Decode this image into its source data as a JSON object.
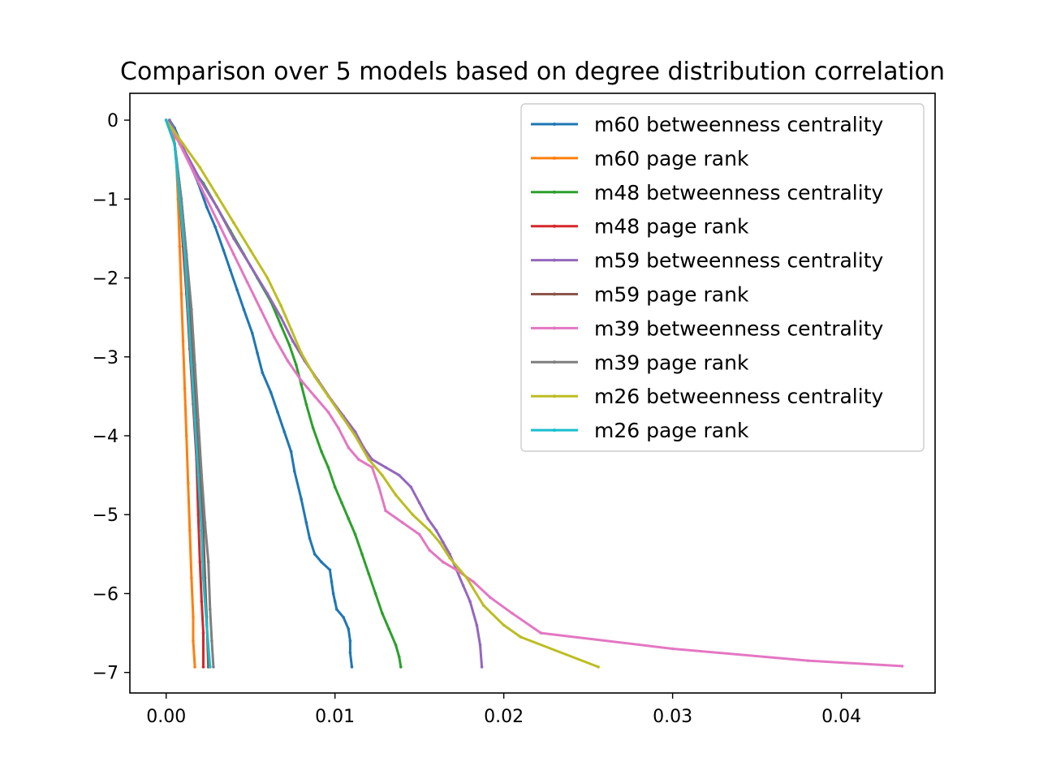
{
  "chart_data": {
    "type": "line",
    "title": "Comparison over 5 models based on degree distribution correlation",
    "xlabel": "",
    "ylabel": "",
    "xlim": [
      -0.00215,
      0.04555
    ],
    "ylim": [
      -7.26,
      0.34
    ],
    "x_ticks": [
      "0.00",
      "0.01",
      "0.02",
      "0.03",
      "0.04"
    ],
    "x_tick_values": [
      0,
      0.01,
      0.02,
      0.03,
      0.04
    ],
    "y_ticks": [
      "0",
      "−1",
      "−2",
      "−3",
      "−4",
      "−5",
      "−6",
      "−7"
    ],
    "y_tick_values": [
      0,
      -1,
      -2,
      -3,
      -4,
      -5,
      -6,
      -7
    ],
    "grid": false,
    "legend_position": "top-right",
    "marker": "small dot",
    "series": [
      {
        "name": "m60 betweenness centrality",
        "color": "#1f77b4",
        "points": [
          [
            0.0002,
            0
          ],
          [
            0.0005,
            -0.1
          ],
          [
            0.0009,
            -0.3
          ],
          [
            0.0014,
            -0.55
          ],
          [
            0.0019,
            -0.8
          ],
          [
            0.0024,
            -1.1
          ],
          [
            0.0029,
            -1.35
          ],
          [
            0.0034,
            -1.65
          ],
          [
            0.0038,
            -1.9
          ],
          [
            0.0042,
            -2.15
          ],
          [
            0.0046,
            -2.4
          ],
          [
            0.0051,
            -2.7
          ],
          [
            0.0054,
            -2.95
          ],
          [
            0.0057,
            -3.2
          ],
          [
            0.0062,
            -3.45
          ],
          [
            0.0066,
            -3.7
          ],
          [
            0.007,
            -3.95
          ],
          [
            0.0074,
            -4.2
          ],
          [
            0.0076,
            -4.45
          ],
          [
            0.008,
            -4.8
          ],
          [
            0.0083,
            -5.1
          ],
          [
            0.0085,
            -5.3
          ],
          [
            0.0088,
            -5.5
          ],
          [
            0.0092,
            -5.6
          ],
          [
            0.0097,
            -5.7
          ],
          [
            0.0098,
            -5.85
          ],
          [
            0.0099,
            -6.0
          ],
          [
            0.01,
            -6.1
          ],
          [
            0.0101,
            -6.2
          ],
          [
            0.0105,
            -6.3
          ],
          [
            0.0108,
            -6.45
          ],
          [
            0.0109,
            -6.6
          ],
          [
            0.0109,
            -6.75
          ],
          [
            0.011,
            -6.93
          ]
        ]
      },
      {
        "name": "m60 page rank",
        "color": "#ff7f0e",
        "points": [
          [
            0.0,
            0
          ],
          [
            0.0004,
            -0.1
          ],
          [
            0.0006,
            -0.5
          ],
          [
            0.0007,
            -1.0
          ],
          [
            0.0008,
            -1.6
          ],
          [
            0.0009,
            -2.2
          ],
          [
            0.001,
            -2.8
          ],
          [
            0.0011,
            -3.4
          ],
          [
            0.0012,
            -4.0
          ],
          [
            0.0013,
            -4.6
          ],
          [
            0.0014,
            -5.2
          ],
          [
            0.0015,
            -5.8
          ],
          [
            0.0016,
            -6.3
          ],
          [
            0.0016,
            -6.6
          ],
          [
            0.0017,
            -6.93
          ]
        ]
      },
      {
        "name": "m48 betweenness centrality",
        "color": "#2ca02c",
        "points": [
          [
            0.0002,
            0
          ],
          [
            0.0008,
            -0.3
          ],
          [
            0.0015,
            -0.6
          ],
          [
            0.0022,
            -0.8
          ],
          [
            0.003,
            -1.1
          ],
          [
            0.0038,
            -1.4
          ],
          [
            0.0046,
            -1.7
          ],
          [
            0.0054,
            -2.0
          ],
          [
            0.0062,
            -2.3
          ],
          [
            0.0068,
            -2.6
          ],
          [
            0.0073,
            -2.85
          ],
          [
            0.0077,
            -3.1
          ],
          [
            0.008,
            -3.35
          ],
          [
            0.0083,
            -3.6
          ],
          [
            0.0087,
            -3.9
          ],
          [
            0.0092,
            -4.2
          ],
          [
            0.0096,
            -4.4
          ],
          [
            0.01,
            -4.65
          ],
          [
            0.0104,
            -4.85
          ],
          [
            0.0108,
            -5.05
          ],
          [
            0.0112,
            -5.25
          ],
          [
            0.0116,
            -5.5
          ],
          [
            0.012,
            -5.75
          ],
          [
            0.0124,
            -6.0
          ],
          [
            0.0128,
            -6.25
          ],
          [
            0.0132,
            -6.45
          ],
          [
            0.0136,
            -6.65
          ],
          [
            0.0138,
            -6.8
          ],
          [
            0.0139,
            -6.93
          ]
        ]
      },
      {
        "name": "m48 page rank",
        "color": "#d62728",
        "points": [
          [
            0.0,
            0
          ],
          [
            0.0005,
            -0.3
          ],
          [
            0.0008,
            -1.0
          ],
          [
            0.001,
            -1.6
          ],
          [
            0.0012,
            -2.2
          ],
          [
            0.0014,
            -2.9
          ],
          [
            0.0016,
            -3.6
          ],
          [
            0.0018,
            -4.3
          ],
          [
            0.0019,
            -5.0
          ],
          [
            0.002,
            -5.6
          ],
          [
            0.0021,
            -6.1
          ],
          [
            0.0022,
            -6.5
          ],
          [
            0.0022,
            -6.93
          ]
        ]
      },
      {
        "name": "m59 betweenness centrality",
        "color": "#9467bd",
        "points": [
          [
            0.0002,
            0
          ],
          [
            0.001,
            -0.35
          ],
          [
            0.002,
            -0.75
          ],
          [
            0.003,
            -1.1
          ],
          [
            0.004,
            -1.5
          ],
          [
            0.005,
            -1.85
          ],
          [
            0.006,
            -2.2
          ],
          [
            0.0068,
            -2.5
          ],
          [
            0.0075,
            -2.8
          ],
          [
            0.0082,
            -3.05
          ],
          [
            0.009,
            -3.3
          ],
          [
            0.0098,
            -3.55
          ],
          [
            0.0105,
            -3.75
          ],
          [
            0.0112,
            -3.95
          ],
          [
            0.0117,
            -4.15
          ],
          [
            0.0122,
            -4.3
          ],
          [
            0.013,
            -4.4
          ],
          [
            0.0138,
            -4.5
          ],
          [
            0.0145,
            -4.65
          ],
          [
            0.015,
            -4.85
          ],
          [
            0.0155,
            -5.05
          ],
          [
            0.016,
            -5.2
          ],
          [
            0.0164,
            -5.35
          ],
          [
            0.0168,
            -5.5
          ],
          [
            0.0172,
            -5.7
          ],
          [
            0.0176,
            -5.9
          ],
          [
            0.018,
            -6.1
          ],
          [
            0.0184,
            -6.4
          ],
          [
            0.0186,
            -6.65
          ],
          [
            0.0187,
            -6.93
          ]
        ]
      },
      {
        "name": "m59 page rank",
        "color": "#8c564b",
        "points": [
          [
            0.0,
            0
          ],
          [
            0.0005,
            -0.3
          ],
          [
            0.0009,
            -1.0
          ],
          [
            0.0012,
            -1.7
          ],
          [
            0.0014,
            -2.4
          ],
          [
            0.0016,
            -3.1
          ],
          [
            0.0018,
            -3.8
          ],
          [
            0.002,
            -4.5
          ],
          [
            0.0022,
            -5.2
          ],
          [
            0.0023,
            -5.8
          ],
          [
            0.0024,
            -6.3
          ],
          [
            0.0025,
            -6.93
          ]
        ]
      },
      {
        "name": "m39 betweenness centrality",
        "color": "#e377c2",
        "points": [
          [
            0.0,
            0
          ],
          [
            0.0008,
            -0.3
          ],
          [
            0.0016,
            -0.65
          ],
          [
            0.0024,
            -1.0
          ],
          [
            0.0032,
            -1.35
          ],
          [
            0.004,
            -1.7
          ],
          [
            0.0048,
            -2.05
          ],
          [
            0.0056,
            -2.4
          ],
          [
            0.0064,
            -2.75
          ],
          [
            0.0072,
            -3.05
          ],
          [
            0.008,
            -3.3
          ],
          [
            0.0088,
            -3.5
          ],
          [
            0.0096,
            -3.7
          ],
          [
            0.0102,
            -3.9
          ],
          [
            0.0108,
            -4.15
          ],
          [
            0.0114,
            -4.3
          ],
          [
            0.0122,
            -4.4
          ],
          [
            0.0126,
            -4.65
          ],
          [
            0.013,
            -4.95
          ],
          [
            0.014,
            -5.1
          ],
          [
            0.015,
            -5.25
          ],
          [
            0.0156,
            -5.45
          ],
          [
            0.0164,
            -5.6
          ],
          [
            0.0172,
            -5.7
          ],
          [
            0.0182,
            -5.85
          ],
          [
            0.0192,
            -6.05
          ],
          [
            0.0205,
            -6.25
          ],
          [
            0.0222,
            -6.5
          ],
          [
            0.03,
            -6.7
          ],
          [
            0.038,
            -6.85
          ],
          [
            0.0436,
            -6.92
          ]
        ]
      },
      {
        "name": "m39 page rank",
        "color": "#7f7f7f",
        "points": [
          [
            0.0,
            0
          ],
          [
            0.0005,
            -0.3
          ],
          [
            0.0009,
            -1.0
          ],
          [
            0.0012,
            -1.7
          ],
          [
            0.0015,
            -2.4
          ],
          [
            0.0017,
            -3.1
          ],
          [
            0.0019,
            -3.8
          ],
          [
            0.0021,
            -4.5
          ],
          [
            0.0023,
            -5.1
          ],
          [
            0.0025,
            -5.6
          ],
          [
            0.0026,
            -6.2
          ],
          [
            0.0027,
            -6.6
          ],
          [
            0.0028,
            -6.93
          ]
        ]
      },
      {
        "name": "m26 betweenness centrality",
        "color": "#bcbd22",
        "points": [
          [
            0.0,
            0
          ],
          [
            0.001,
            -0.3
          ],
          [
            0.002,
            -0.6
          ],
          [
            0.003,
            -0.95
          ],
          [
            0.004,
            -1.3
          ],
          [
            0.005,
            -1.65
          ],
          [
            0.006,
            -2.0
          ],
          [
            0.0068,
            -2.35
          ],
          [
            0.0074,
            -2.65
          ],
          [
            0.008,
            -2.95
          ],
          [
            0.0088,
            -3.25
          ],
          [
            0.0096,
            -3.5
          ],
          [
            0.0104,
            -3.75
          ],
          [
            0.0112,
            -4.0
          ],
          [
            0.012,
            -4.3
          ],
          [
            0.0128,
            -4.5
          ],
          [
            0.0136,
            -4.75
          ],
          [
            0.0146,
            -5.0
          ],
          [
            0.0156,
            -5.2
          ],
          [
            0.0162,
            -5.35
          ],
          [
            0.0168,
            -5.55
          ],
          [
            0.0178,
            -5.8
          ],
          [
            0.0188,
            -6.15
          ],
          [
            0.02,
            -6.4
          ],
          [
            0.021,
            -6.55
          ],
          [
            0.0256,
            -6.93
          ]
        ]
      },
      {
        "name": "m26 page rank",
        "color": "#17becf",
        "points": [
          [
            0.0,
            0
          ],
          [
            0.0005,
            -0.3
          ],
          [
            0.0008,
            -1.0
          ],
          [
            0.0011,
            -1.7
          ],
          [
            0.0013,
            -2.4
          ],
          [
            0.0015,
            -3.1
          ],
          [
            0.0017,
            -3.8
          ],
          [
            0.0019,
            -4.5
          ],
          [
            0.0021,
            -5.2
          ],
          [
            0.0022,
            -5.8
          ],
          [
            0.0024,
            -6.4
          ],
          [
            0.0026,
            -6.93
          ]
        ]
      }
    ]
  }
}
